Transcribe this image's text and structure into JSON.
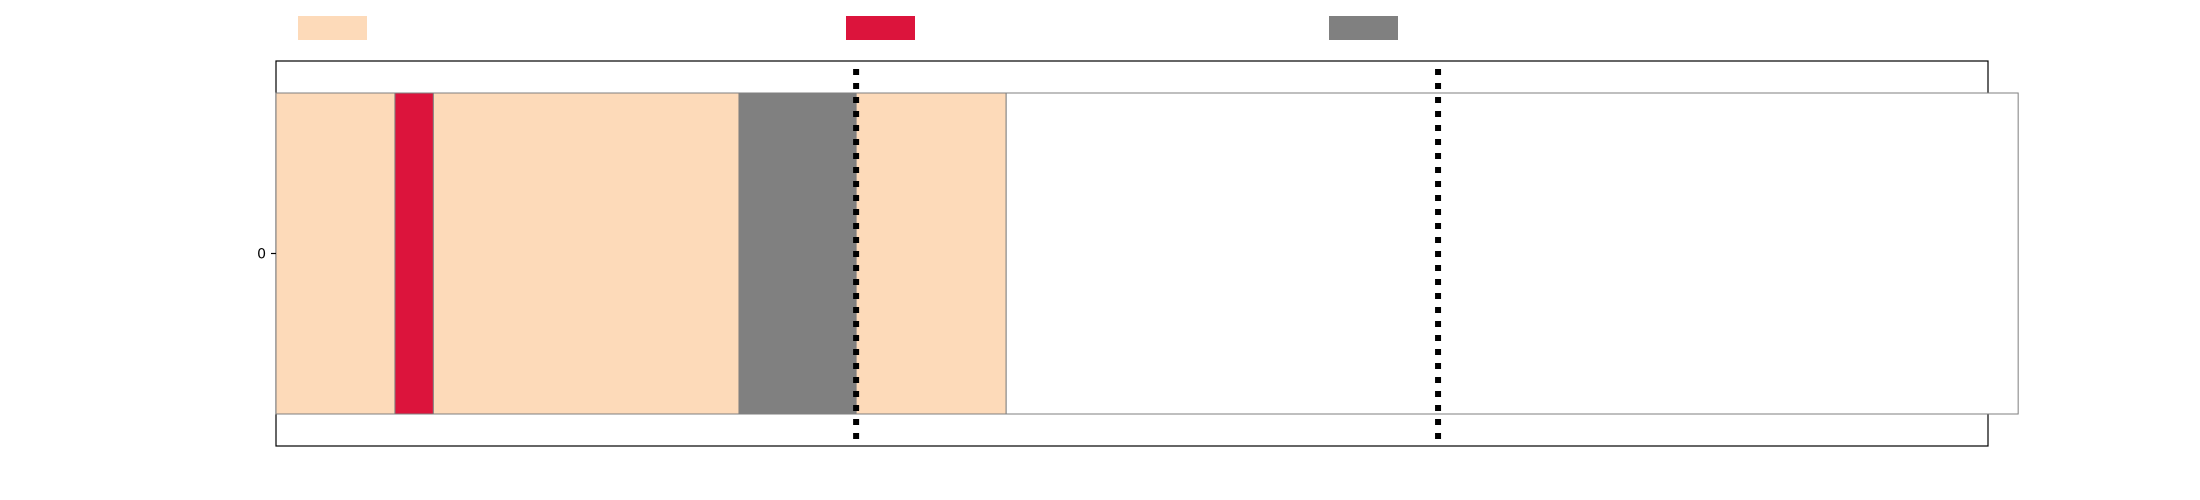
{
  "chart_data": {
    "type": "bar",
    "orientation": "horizontal",
    "stacked": true,
    "categories": [
      "0"
    ],
    "legend": {
      "placement": "top",
      "entries": [
        {
          "name": "",
          "color": "#FDDAB9"
        },
        {
          "name": "",
          "color": "#DC143C"
        },
        {
          "name": "",
          "color": "#808080"
        }
      ]
    },
    "segments": [
      {
        "start": 0.0,
        "end": 0.065,
        "color": "#FDDAB9"
      },
      {
        "start": 0.065,
        "end": 0.086,
        "color": "#DC143C"
      },
      {
        "start": 0.086,
        "end": 0.253,
        "color": "#FDDAB9"
      },
      {
        "start": 0.253,
        "end": 0.317,
        "color": "#808080"
      },
      {
        "start": 0.317,
        "end": 0.399,
        "color": "#FDDAB9"
      },
      {
        "start": 0.399,
        "end": 0.952,
        "color": "#FFFFFF"
      }
    ],
    "reference_lines": [
      {
        "x": 0.317,
        "style": "dotted",
        "color": "#000000"
      },
      {
        "x": 0.635,
        "style": "dotted",
        "color": "#000000"
      }
    ],
    "xlim": [
      0,
      1
    ],
    "grid": false,
    "xlabel": "",
    "ylabel": "",
    "title": ""
  }
}
